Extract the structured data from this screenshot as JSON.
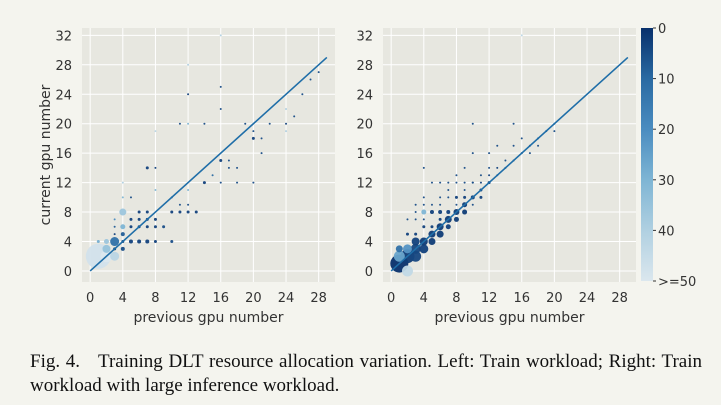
{
  "chart_data": [
    {
      "type": "scatter",
      "panel": "left",
      "xlabel": "previous gpu number",
      "ylabel": "current gpu number",
      "xlim": [
        -1,
        30
      ],
      "ylim": [
        -1.5,
        33
      ],
      "xticks": [
        0,
        4,
        8,
        12,
        16,
        20,
        24,
        28
      ],
      "yticks": [
        0,
        4,
        8,
        12,
        16,
        20,
        24,
        28,
        32
      ],
      "grid": true,
      "reference_line": [
        [
          0,
          0
        ],
        [
          29,
          29
        ]
      ],
      "points": [
        [
          1,
          2,
          25,
          48
        ],
        [
          2,
          2,
          12,
          50
        ],
        [
          3,
          2,
          9,
          42
        ],
        [
          2,
          3,
          8,
          35
        ],
        [
          3,
          4,
          9,
          12
        ],
        [
          2,
          4,
          5,
          36
        ],
        [
          4,
          8,
          7,
          36
        ],
        [
          4,
          6,
          5,
          30
        ],
        [
          4,
          5,
          4,
          8
        ],
        [
          4,
          3,
          4,
          5
        ],
        [
          3,
          3,
          3,
          3
        ],
        [
          4,
          4,
          3,
          3
        ],
        [
          5,
          4,
          4,
          3
        ],
        [
          6,
          4,
          4,
          3
        ],
        [
          7,
          4,
          4,
          3
        ],
        [
          8,
          4,
          3,
          3
        ],
        [
          10,
          4,
          3,
          5
        ],
        [
          1,
          4,
          3,
          28
        ],
        [
          3,
          5,
          2,
          3
        ],
        [
          3,
          6,
          2,
          8
        ],
        [
          3,
          7,
          2,
          20
        ],
        [
          5,
          6,
          3,
          3
        ],
        [
          6,
          6,
          3,
          3
        ],
        [
          7,
          6,
          3,
          3
        ],
        [
          8,
          6,
          3,
          3
        ],
        [
          9,
          6,
          3,
          5
        ],
        [
          5,
          7,
          3,
          3
        ],
        [
          6,
          7,
          3,
          3
        ],
        [
          7,
          7,
          3,
          3
        ],
        [
          8,
          7,
          3,
          3
        ],
        [
          6,
          8,
          3,
          3
        ],
        [
          7,
          8,
          3,
          3
        ],
        [
          5,
          10,
          2,
          5
        ],
        [
          4,
          10,
          2,
          30
        ],
        [
          4,
          12,
          2,
          40
        ],
        [
          8,
          11,
          2,
          30
        ],
        [
          7,
          14,
          3,
          3
        ],
        [
          8,
          14,
          2,
          3
        ],
        [
          8,
          19,
          2,
          42
        ],
        [
          10,
          8,
          3,
          3
        ],
        [
          11,
          8,
          3,
          3
        ],
        [
          12,
          8,
          3,
          3
        ],
        [
          13,
          8,
          3,
          3
        ],
        [
          11,
          9,
          2,
          5
        ],
        [
          12,
          9,
          2,
          5
        ],
        [
          10,
          10,
          2,
          5
        ],
        [
          12,
          11,
          2,
          30
        ],
        [
          11,
          20,
          2,
          5
        ],
        [
          12,
          20,
          2,
          30
        ],
        [
          12,
          24,
          2,
          3
        ],
        [
          12,
          28,
          2,
          40
        ],
        [
          14,
          12,
          3,
          3
        ],
        [
          14,
          20,
          2,
          5
        ],
        [
          15,
          13,
          2,
          10
        ],
        [
          16,
          12,
          2,
          5
        ],
        [
          16,
          15,
          3,
          3
        ],
        [
          16,
          25,
          2,
          5
        ],
        [
          16,
          22,
          2,
          5
        ],
        [
          16,
          32,
          2,
          40
        ],
        [
          17,
          14,
          2,
          5
        ],
        [
          17,
          15,
          2,
          5
        ],
        [
          18,
          12,
          2,
          5
        ],
        [
          18,
          14,
          2,
          5
        ],
        [
          20,
          12,
          2,
          5
        ],
        [
          20,
          18,
          3,
          3
        ],
        [
          20,
          19,
          2,
          5
        ],
        [
          19,
          20,
          2,
          5
        ],
        [
          21,
          18,
          2,
          5
        ],
        [
          21,
          16,
          2,
          5
        ],
        [
          22,
          20,
          2,
          5
        ],
        [
          24,
          20,
          2,
          3
        ],
        [
          24,
          22,
          2,
          40
        ],
        [
          24,
          19,
          2,
          40
        ],
        [
          25,
          21,
          2,
          5
        ],
        [
          26,
          24,
          2,
          5
        ],
        [
          28,
          27,
          2,
          5
        ],
        [
          27,
          26,
          2,
          5
        ]
      ]
    },
    {
      "type": "scatter",
      "panel": "right",
      "xlabel": "previous gpu number",
      "xlim": [
        -1,
        30
      ],
      "ylim": [
        -1.5,
        33
      ],
      "xticks": [
        0,
        4,
        8,
        12,
        16,
        20,
        24,
        28
      ],
      "yticks": [
        0,
        4,
        8,
        12,
        16,
        20,
        24,
        28,
        32
      ],
      "grid": true,
      "reference_line": [
        [
          0,
          0
        ],
        [
          29,
          29
        ]
      ],
      "points": [
        [
          1,
          1,
          18,
          0
        ],
        [
          2,
          0,
          11,
          44
        ],
        [
          1,
          2,
          11,
          26
        ],
        [
          2,
          2,
          14,
          2
        ],
        [
          3,
          2,
          11,
          4
        ],
        [
          2,
          3,
          9,
          22
        ],
        [
          1,
          3,
          7,
          12
        ],
        [
          3,
          3,
          10,
          4
        ],
        [
          4,
          3,
          9,
          3
        ],
        [
          3,
          4,
          8,
          3
        ],
        [
          4,
          4,
          8,
          2
        ],
        [
          5,
          4,
          7,
          2
        ],
        [
          5,
          5,
          7,
          2
        ],
        [
          6,
          5,
          7,
          2
        ],
        [
          6,
          6,
          7,
          2
        ],
        [
          7,
          7,
          7,
          2
        ],
        [
          7,
          6,
          5,
          3
        ],
        [
          8,
          8,
          6,
          2
        ],
        [
          8,
          7,
          5,
          2
        ],
        [
          9,
          8,
          5,
          2
        ],
        [
          9,
          9,
          5,
          2
        ],
        [
          10,
          10,
          4,
          3
        ],
        [
          11,
          10,
          3,
          3
        ],
        [
          11,
          11,
          3,
          3
        ],
        [
          12,
          12,
          3,
          3
        ],
        [
          4,
          8,
          5,
          30
        ],
        [
          5,
          8,
          4,
          3
        ],
        [
          6,
          8,
          4,
          3
        ],
        [
          7,
          8,
          4,
          3
        ],
        [
          8,
          10,
          3,
          3
        ],
        [
          9,
          10,
          3,
          3
        ],
        [
          10,
          12,
          2,
          3
        ],
        [
          11,
          12,
          2,
          3
        ],
        [
          12,
          13,
          2,
          3
        ],
        [
          13,
          14,
          2,
          3
        ],
        [
          14,
          14,
          2,
          3
        ],
        [
          15,
          15,
          2,
          3
        ],
        [
          16,
          16,
          2,
          3
        ],
        [
          17,
          17,
          2,
          3
        ],
        [
          18,
          18,
          2,
          3
        ],
        [
          19,
          19,
          2,
          3
        ],
        [
          20,
          19,
          2,
          5
        ],
        [
          4,
          6,
          3,
          3
        ],
        [
          3,
          5,
          3,
          3
        ],
        [
          2,
          5,
          3,
          3
        ],
        [
          5,
          6,
          3,
          3
        ],
        [
          6,
          7,
          3,
          3
        ],
        [
          4,
          14,
          2,
          5
        ],
        [
          5,
          12,
          2,
          5
        ],
        [
          6,
          12,
          2,
          5
        ],
        [
          7,
          12,
          2,
          5
        ],
        [
          8,
          12,
          2,
          5
        ],
        [
          9,
          12,
          2,
          5
        ],
        [
          10,
          12,
          2,
          5
        ],
        [
          6,
          10,
          2,
          5
        ],
        [
          7,
          10,
          2,
          5
        ],
        [
          8,
          9,
          2,
          5
        ],
        [
          10,
          9,
          2,
          5
        ],
        [
          6,
          9,
          2,
          5
        ],
        [
          9,
          14,
          2,
          5
        ],
        [
          10,
          16,
          2,
          5
        ],
        [
          10,
          20,
          2,
          5
        ],
        [
          12,
          16,
          2,
          5
        ],
        [
          13,
          17,
          2,
          5
        ],
        [
          14,
          15,
          2,
          5
        ],
        [
          15,
          17,
          2,
          5
        ],
        [
          16,
          18,
          2,
          5
        ],
        [
          17,
          16,
          2,
          5
        ],
        [
          18,
          17,
          2,
          5
        ],
        [
          15,
          20,
          2,
          5
        ],
        [
          11,
          13,
          2,
          5
        ],
        [
          12,
          14,
          2,
          5
        ],
        [
          13,
          13,
          2,
          5
        ],
        [
          7,
          11,
          2,
          5
        ],
        [
          8,
          13,
          2,
          5
        ],
        [
          9,
          11,
          2,
          5
        ],
        [
          3,
          9,
          2,
          5
        ],
        [
          4,
          9,
          2,
          5
        ],
        [
          5,
          9,
          2,
          5
        ],
        [
          4,
          10,
          2,
          5
        ],
        [
          3,
          8,
          2,
          5
        ],
        [
          2,
          7,
          2,
          5
        ],
        [
          3,
          7,
          2,
          5
        ],
        [
          4,
          7,
          2,
          5
        ],
        [
          16,
          32,
          2,
          42
        ],
        [
          20,
          20,
          2,
          10
        ]
      ]
    }
  ],
  "colorbar": {
    "ticks": [
      "0",
      "10",
      "20",
      "30",
      "40",
      ">=50"
    ],
    "colors": [
      "#08306b",
      "#2a6aa2",
      "#4a8cc0",
      "#7eb5d4",
      "#b0d0e1",
      "#dbe7ee"
    ]
  },
  "colors": {
    "line": "#1f6ea8",
    "panel_bg": "#e7e7e0",
    "grid": "#ffffff"
  },
  "caption": {
    "label": "Fig. 4.",
    "text": "Training DLT resource allocation variation. Left: Train workload; Right: Train workload with large inference workload."
  }
}
